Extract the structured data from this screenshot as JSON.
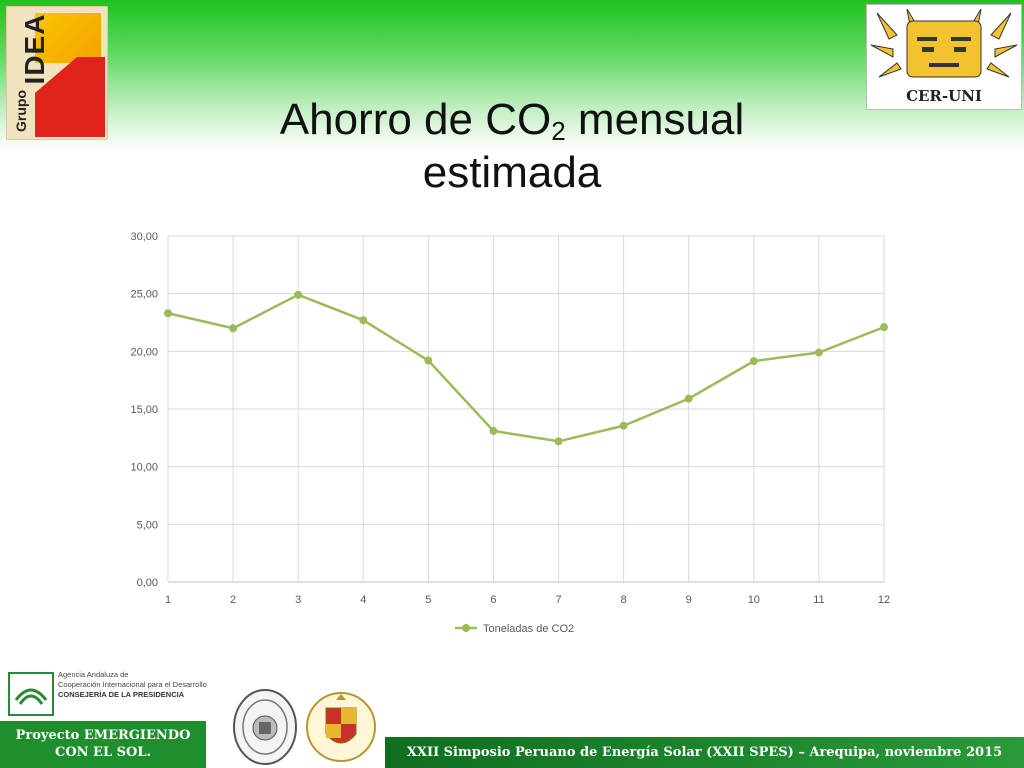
{
  "header": {
    "title_main": "Ahorro de CO",
    "title_sub": "2",
    "title_rest": " mensual",
    "title_line2": "estimada",
    "logo_left_text_small": "Grupo",
    "logo_left_text_big": "IDEA",
    "logo_right_text": "CER-UNI"
  },
  "footer": {
    "agency_line1": "Agencia Andaluza de",
    "agency_line2": "Cooperación Internacional para el Desarrollo",
    "agency_line3": "CONSEJERÍA DE LA PRESIDENCIA",
    "project_line1": "Proyecto EMERGIENDO",
    "project_line2": "CON EL SOL.",
    "event": "XXII Simposio Peruano de Energía Solar (XXII SPES) – Arequipa, noviembre 2015"
  },
  "colors": {
    "series": "#9bbb59",
    "grid": "#d9d9d9",
    "header_green": "#1fc21f",
    "footer_green": "#1f8f2e"
  },
  "chart_data": {
    "type": "line",
    "x": [
      1,
      2,
      3,
      4,
      5,
      6,
      7,
      8,
      9,
      10,
      11,
      12
    ],
    "series": [
      {
        "name": "Toneladas de CO2",
        "values": [
          23.3,
          22.0,
          24.9,
          22.7,
          19.2,
          13.1,
          12.2,
          13.55,
          15.9,
          19.15,
          19.9,
          22.1
        ]
      }
    ],
    "y_ticks": [
      "0,00",
      "5,00",
      "10,00",
      "15,00",
      "20,00",
      "25,00",
      "30,00"
    ],
    "ylim": [
      0,
      30
    ],
    "grid": true,
    "legend_position": "bottom"
  }
}
